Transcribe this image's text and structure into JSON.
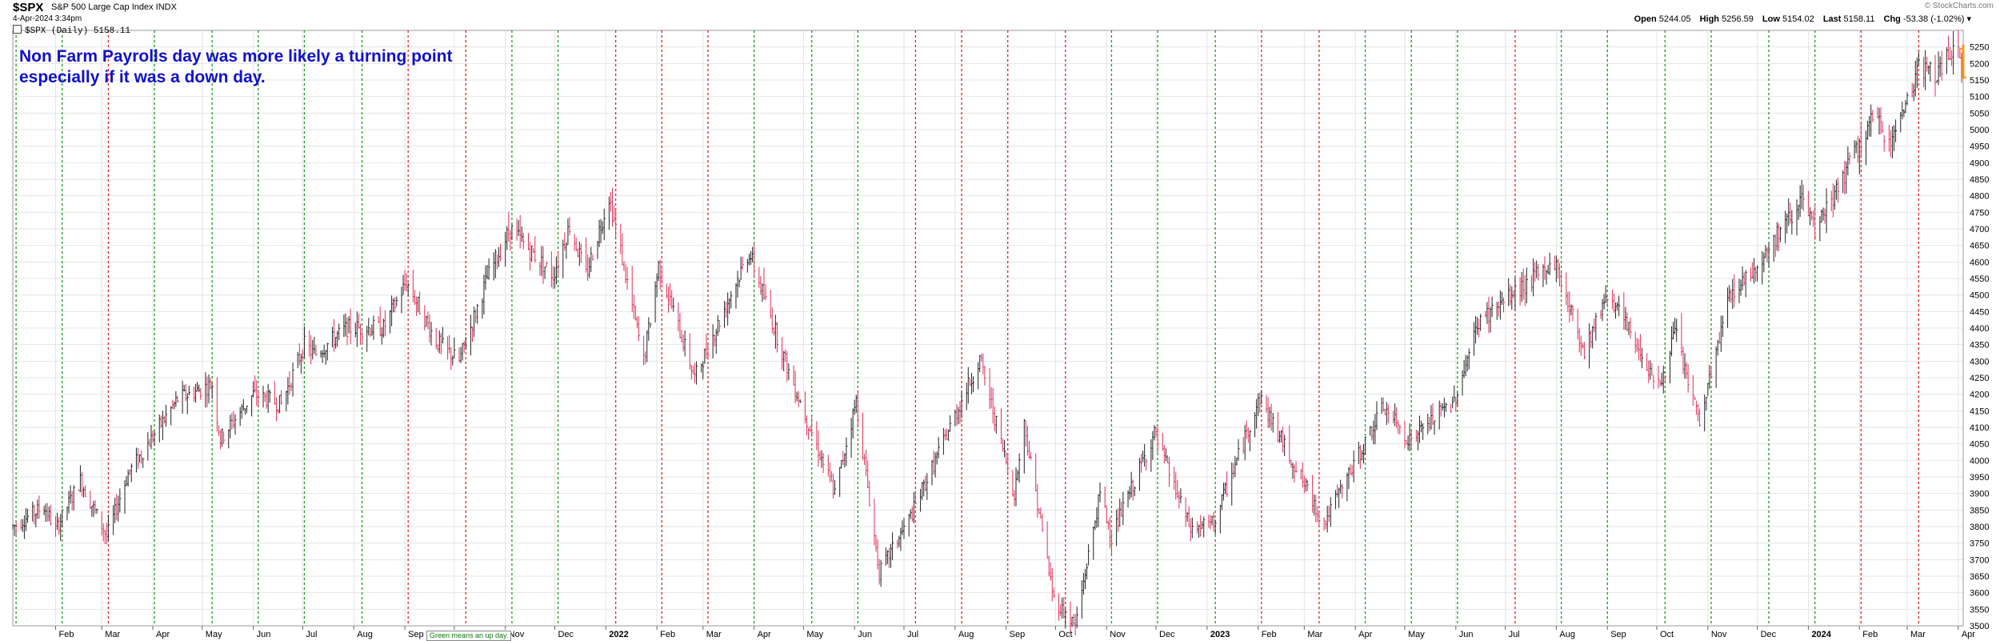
{
  "header": {
    "symbol": "$SPX",
    "description": "S&P 500 Large Cap Index  INDX",
    "date": "4-Apr-2024 3:34pm",
    "legend": "$SPX (Daily) 5158.11",
    "watermark": "© StockCharts.com",
    "open_label": "Open",
    "open": "5244.05",
    "high_label": "High",
    "high": "5256.59",
    "low_label": "Low",
    "low": "5154.02",
    "last_label": "Last",
    "last": "5158.11",
    "chg_label": "Chg",
    "chg": "-53.38 (-1.02%)"
  },
  "annotation": {
    "line1": "Non Farm Payrolls day was more likely a turning point",
    "line2": "especially if it was a down day."
  },
  "callout": "Green means an up day.",
  "colors": {
    "up_bar": "#222222",
    "down_bar": "#e0305a",
    "green_line": "#1a9a1a",
    "red_line": "#e02020",
    "last_bar": "#f39c12",
    "annotation": "#1111cc",
    "grid": "#e4e4e4"
  },
  "chart_data": {
    "type": "ohlc",
    "title": "",
    "xlabel": "",
    "ylabel": "",
    "ylim": [
      3500,
      5300
    ],
    "grid": true,
    "y_axis_position": "right",
    "y_ticks": [
      3500,
      3550,
      3600,
      3650,
      3700,
      3750,
      3800,
      3850,
      3900,
      3950,
      4000,
      4050,
      4100,
      4150,
      4200,
      4250,
      4300,
      4350,
      4400,
      4450,
      4500,
      4550,
      4600,
      4650,
      4700,
      4750,
      4800,
      4850,
      4900,
      4950,
      5000,
      5050,
      5100,
      5150,
      5200,
      5250
    ],
    "x_ticks": [
      "Feb",
      "Mar",
      "Apr",
      "May",
      "Jun",
      "Jul",
      "Aug",
      "Sep",
      "Oct",
      "Nov",
      "Dec",
      "2022",
      "Feb",
      "Mar",
      "Apr",
      "May",
      "Jun",
      "Jul",
      "Aug",
      "Sep",
      "Oct",
      "Nov",
      "Dec",
      "2023",
      "Feb",
      "Mar",
      "Apr",
      "May",
      "Jun",
      "Jul",
      "Aug",
      "Sep",
      "Oct",
      "Nov",
      "Dec",
      "2024",
      "Feb",
      "Mar",
      "Apr"
    ],
    "x_range": [
      "2021-01-06",
      "2024-04-04"
    ],
    "price_path": [
      [
        "2021-01-06",
        3800
      ],
      [
        "2021-01-25",
        3860
      ],
      [
        "2021-02-01",
        3790
      ],
      [
        "2021-02-16",
        3940
      ],
      [
        "2021-03-04",
        3770
      ],
      [
        "2021-03-17",
        3960
      ],
      [
        "2021-04-16",
        4185
      ],
      [
        "2021-05-07",
        4230
      ],
      [
        "2021-05-12",
        4065
      ],
      [
        "2021-06-01",
        4200
      ],
      [
        "2021-06-18",
        4170
      ],
      [
        "2021-07-02",
        4350
      ],
      [
        "2021-07-08",
        4320
      ],
      [
        "2021-07-28",
        4400
      ],
      [
        "2021-08-19",
        4400
      ],
      [
        "2021-09-02",
        4540
      ],
      [
        "2021-09-20",
        4360
      ],
      [
        "2021-10-04",
        4300
      ],
      [
        "2021-10-21",
        4550
      ],
      [
        "2021-11-04",
        4700
      ],
      [
        "2021-11-30",
        4560
      ],
      [
        "2021-12-10",
        4710
      ],
      [
        "2021-12-20",
        4560
      ],
      [
        "2022-01-03",
        4800
      ],
      [
        "2022-01-24",
        4300
      ],
      [
        "2022-02-02",
        4590
      ],
      [
        "2022-02-24",
        4250
      ],
      [
        "2022-03-29",
        4630
      ],
      [
        "2022-04-22",
        4270
      ],
      [
        "2022-05-20",
        3900
      ],
      [
        "2022-06-02",
        4180
      ],
      [
        "2022-06-16",
        3660
      ],
      [
        "2022-07-05",
        3830
      ],
      [
        "2022-08-16",
        4305
      ],
      [
        "2022-09-06",
        3900
      ],
      [
        "2022-09-12",
        4110
      ],
      [
        "2022-09-30",
        3580
      ],
      [
        "2022-10-13",
        3500
      ],
      [
        "2022-10-28",
        3900
      ],
      [
        "2022-11-04",
        3770
      ],
      [
        "2022-11-30",
        4080
      ],
      [
        "2022-12-22",
        3790
      ],
      [
        "2023-01-05",
        3810
      ],
      [
        "2023-02-02",
        4190
      ],
      [
        "2023-03-13",
        3810
      ],
      [
        "2023-04-18",
        4160
      ],
      [
        "2023-05-04",
        4060
      ],
      [
        "2023-05-31",
        4180
      ],
      [
        "2023-06-15",
        4420
      ],
      [
        "2023-07-31",
        4600
      ],
      [
        "2023-08-18",
        4330
      ],
      [
        "2023-09-01",
        4510
      ],
      [
        "2023-10-03",
        4220
      ],
      [
        "2023-10-12",
        4390
      ],
      [
        "2023-10-27",
        4110
      ],
      [
        "2023-11-14",
        4500
      ],
      [
        "2023-12-01",
        4590
      ],
      [
        "2023-12-28",
        4790
      ],
      [
        "2024-01-05",
        4690
      ],
      [
        "2024-02-09",
        5030
      ],
      [
        "2024-02-21",
        4970
      ],
      [
        "2024-03-08",
        5190
      ],
      [
        "2024-03-19",
        5170
      ],
      [
        "2024-04-01",
        5260
      ],
      [
        "2024-04-04",
        5158
      ]
    ],
    "nfp_dates_green": [
      "2021-01-08",
      "2021-02-05",
      "2021-04-02",
      "2021-05-07",
      "2021-06-04",
      "2021-07-02",
      "2021-08-06",
      "2021-11-05",
      "2021-12-03",
      "2022-04-01",
      "2022-05-06",
      "2022-06-03",
      "2022-11-04",
      "2022-12-02",
      "2023-01-06",
      "2023-04-07",
      "2023-05-05",
      "2023-06-02",
      "2023-08-04",
      "2023-09-01",
      "2023-10-06",
      "2023-11-03",
      "2023-12-08",
      "2024-01-05"
    ],
    "nfp_dates_red": [
      "2021-03-05",
      "2021-09-03",
      "2021-10-08",
      "2022-01-07",
      "2022-02-04",
      "2022-03-04",
      "2022-07-08",
      "2022-08-05",
      "2022-09-02",
      "2022-10-07",
      "2023-02-03",
      "2023-03-10",
      "2023-07-07",
      "2024-02-02",
      "2024-03-08"
    ],
    "last_bar": {
      "date": "2024-04-04",
      "open": 5244.05,
      "high": 5256.59,
      "low": 5154.02,
      "close": 5158.11
    }
  }
}
